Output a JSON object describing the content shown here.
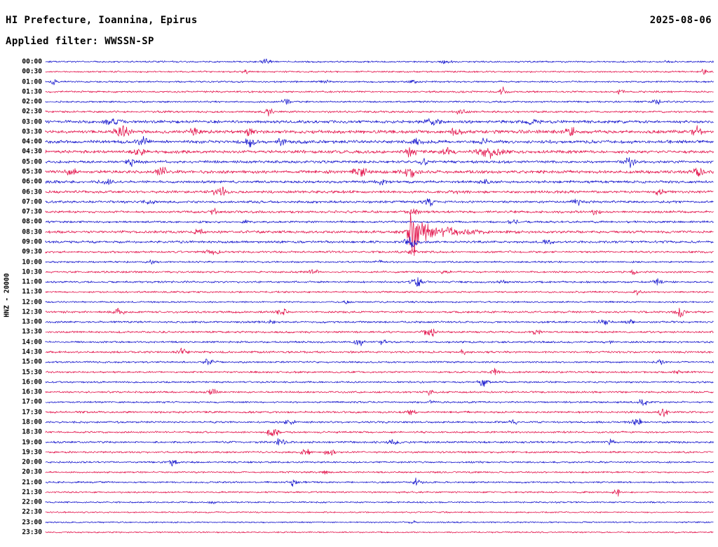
{
  "header": {
    "station_title": "HI Prefecture, Ioannina, Epirus",
    "date": "2025-08-06",
    "filter_line": "Applied filter: WWSSN-SP"
  },
  "side_label": "HNZ - 20000",
  "chart_data": {
    "type": "line",
    "subtype": "helicorder-seismogram",
    "title": "HI Prefecture, Ioannina, Epirus",
    "subtitle": "Applied filter: WWSSN-SP",
    "date": "2025-08-06",
    "ylabel": "HNZ - 20000",
    "minutes_per_row": 30,
    "rows_total": 48,
    "grid": false,
    "legend": "none",
    "trace_palette": {
      "blue": "#1111cc",
      "red": "#e2114a"
    },
    "notable_events": [
      {
        "row": "08:30",
        "position_fraction": 0.548,
        "note": "largest amplitude burst of the day"
      },
      {
        "row": "03:30",
        "position_fraction": 0.115,
        "note": "strong noise bursts, morning noisy period 03:00-07:30"
      }
    ],
    "rows": [
      {
        "t": "00:00",
        "c": "blue",
        "amp": 1.4,
        "ev": [
          [
            0.33,
            3.5,
            0.006
          ],
          [
            0.6,
            3,
            0.005
          ],
          [
            0.93,
            2.5,
            0.004
          ]
        ]
      },
      {
        "t": "00:30",
        "c": "red",
        "amp": 1.4,
        "ev": [
          [
            0.3,
            2.5,
            0.005
          ],
          [
            0.985,
            7,
            0.0025
          ]
        ]
      },
      {
        "t": "01:00",
        "c": "blue",
        "amp": 1.4,
        "ev": [
          [
            0.012,
            6,
            0.0025
          ],
          [
            0.42,
            2.5,
            0.005
          ],
          [
            0.55,
            2.5,
            0.004
          ]
        ]
      },
      {
        "t": "01:30",
        "c": "red",
        "amp": 1.5,
        "ev": [
          [
            0.685,
            7,
            0.004
          ],
          [
            0.86,
            3,
            0.004
          ]
        ]
      },
      {
        "t": "02:00",
        "c": "blue",
        "amp": 1.5,
        "ev": [
          [
            0.36,
            5.5,
            0.004
          ],
          [
            0.915,
            6.5,
            0.0035
          ]
        ]
      },
      {
        "t": "02:30",
        "c": "red",
        "amp": 1.7,
        "ev": [
          [
            0.335,
            6,
            0.004
          ],
          [
            0.62,
            3.5,
            0.006
          ]
        ]
      },
      {
        "t": "03:00",
        "c": "blue",
        "amp": 2.4,
        "ev": [
          [
            0.1,
            4,
            0.008
          ],
          [
            0.58,
            5,
            0.008
          ],
          [
            0.73,
            4,
            0.006
          ]
        ]
      },
      {
        "t": "03:30",
        "c": "red",
        "amp": 2.8,
        "ev": [
          [
            0.115,
            9,
            0.007
          ],
          [
            0.225,
            6,
            0.006
          ],
          [
            0.305,
            5,
            0.005
          ],
          [
            0.615,
            6,
            0.006
          ],
          [
            0.785,
            8,
            0.006
          ],
          [
            0.975,
            7,
            0.005
          ]
        ]
      },
      {
        "t": "04:00",
        "c": "blue",
        "amp": 2.6,
        "ev": [
          [
            0.145,
            6,
            0.006
          ],
          [
            0.305,
            8,
            0.005
          ],
          [
            0.355,
            5,
            0.005
          ],
          [
            0.555,
            5,
            0.006
          ],
          [
            0.655,
            4,
            0.005
          ]
        ]
      },
      {
        "t": "04:30",
        "c": "red",
        "amp": 2.6,
        "ev": [
          [
            0.14,
            4,
            0.006
          ],
          [
            0.545,
            9,
            0.007
          ],
          [
            0.6,
            5,
            0.006
          ],
          [
            0.665,
            9,
            0.012
          ]
        ]
      },
      {
        "t": "05:00",
        "c": "blue",
        "amp": 2.2,
        "ev": [
          [
            0.13,
            5,
            0.006
          ],
          [
            0.565,
            4,
            0.005
          ],
          [
            0.875,
            7,
            0.005
          ]
        ]
      },
      {
        "t": "05:30",
        "c": "red",
        "amp": 2.6,
        "ev": [
          [
            0.04,
            7,
            0.006
          ],
          [
            0.175,
            6,
            0.006
          ],
          [
            0.47,
            7,
            0.007
          ],
          [
            0.545,
            8,
            0.006
          ],
          [
            0.975,
            8,
            0.005
          ]
        ]
      },
      {
        "t": "06:00",
        "c": "blue",
        "amp": 2.2,
        "ev": [
          [
            0.09,
            5,
            0.006
          ],
          [
            0.5,
            5,
            0.006
          ],
          [
            0.655,
            4,
            0.005
          ]
        ]
      },
      {
        "t": "06:30",
        "c": "red",
        "amp": 2.2,
        "ev": [
          [
            0.26,
            8,
            0.007
          ],
          [
            0.615,
            4,
            0.005
          ],
          [
            0.92,
            6.5,
            0.005
          ]
        ]
      },
      {
        "t": "07:00",
        "c": "blue",
        "amp": 2.0,
        "ev": [
          [
            0.155,
            4,
            0.005
          ],
          [
            0.575,
            6,
            0.005
          ],
          [
            0.795,
            5,
            0.005
          ]
        ]
      },
      {
        "t": "07:30",
        "c": "red",
        "amp": 2.0,
        "ev": [
          [
            0.25,
            5,
            0.005
          ],
          [
            0.55,
            4,
            0.005
          ],
          [
            0.825,
            4,
            0.005
          ]
        ]
      },
      {
        "t": "08:00",
        "c": "blue",
        "amp": 1.8,
        "ev": [
          [
            0.3,
            3,
            0.005
          ],
          [
            0.7,
            3,
            0.005
          ]
        ]
      },
      {
        "t": "08:30",
        "c": "red",
        "amp": 2.2,
        "ev": [
          [
            0.23,
            4,
            0.005
          ],
          [
            0.548,
            40,
            0.0035
          ],
          [
            0.56,
            14,
            0.01
          ],
          [
            0.6,
            6,
            0.03
          ]
        ]
      },
      {
        "t": "09:00",
        "c": "blue",
        "amp": 2.0,
        "ev": [
          [
            0.548,
            8,
            0.007
          ],
          [
            0.75,
            3,
            0.005
          ]
        ]
      },
      {
        "t": "09:30",
        "c": "red",
        "amp": 1.8,
        "ev": [
          [
            0.25,
            4,
            0.006
          ],
          [
            0.548,
            3,
            0.005
          ]
        ]
      },
      {
        "t": "10:00",
        "c": "blue",
        "amp": 1.5,
        "ev": [
          [
            0.16,
            4,
            0.004
          ],
          [
            0.5,
            2.5,
            0.004
          ]
        ]
      },
      {
        "t": "10:30",
        "c": "red",
        "amp": 1.6,
        "ev": [
          [
            0.4,
            4,
            0.005
          ],
          [
            0.6,
            3.5,
            0.005
          ],
          [
            0.88,
            3,
            0.004
          ]
        ]
      },
      {
        "t": "11:00",
        "c": "blue",
        "amp": 1.6,
        "ev": [
          [
            0.555,
            8,
            0.005
          ],
          [
            0.685,
            4,
            0.004
          ],
          [
            0.915,
            5,
            0.004
          ]
        ]
      },
      {
        "t": "11:30",
        "c": "red",
        "amp": 1.5,
        "ev": [
          [
            0.885,
            4,
            0.004
          ]
        ]
      },
      {
        "t": "12:00",
        "c": "blue",
        "amp": 1.4,
        "ev": [
          [
            0.45,
            2.5,
            0.004
          ]
        ]
      },
      {
        "t": "12:30",
        "c": "red",
        "amp": 1.7,
        "ev": [
          [
            0.11,
            7,
            0.005
          ],
          [
            0.355,
            5,
            0.005
          ],
          [
            0.95,
            7.5,
            0.005
          ]
        ]
      },
      {
        "t": "13:00",
        "c": "blue",
        "amp": 1.6,
        "ev": [
          [
            0.335,
            4,
            0.005
          ],
          [
            0.835,
            7,
            0.005
          ],
          [
            0.875,
            4,
            0.004
          ]
        ]
      },
      {
        "t": "13:30",
        "c": "red",
        "amp": 1.7,
        "ev": [
          [
            0.575,
            8,
            0.006
          ],
          [
            0.735,
            4,
            0.005
          ]
        ]
      },
      {
        "t": "14:00",
        "c": "blue",
        "amp": 1.6,
        "ev": [
          [
            0.47,
            5,
            0.005
          ],
          [
            0.505,
            4,
            0.004
          ],
          [
            0.845,
            3.5,
            0.004
          ]
        ]
      },
      {
        "t": "14:30",
        "c": "red",
        "amp": 1.7,
        "ev": [
          [
            0.205,
            6,
            0.005
          ],
          [
            0.625,
            4,
            0.005
          ]
        ]
      },
      {
        "t": "15:00",
        "c": "blue",
        "amp": 1.5,
        "ev": [
          [
            0.245,
            5,
            0.005
          ],
          [
            0.92,
            3.5,
            0.004
          ]
        ]
      },
      {
        "t": "15:30",
        "c": "red",
        "amp": 1.6,
        "ev": [
          [
            0.675,
            5.5,
            0.005
          ],
          [
            0.945,
            3.5,
            0.004
          ]
        ]
      },
      {
        "t": "16:00",
        "c": "blue",
        "amp": 1.5,
        "ev": [
          [
            0.655,
            6,
            0.005
          ]
        ]
      },
      {
        "t": "16:30",
        "c": "red",
        "amp": 1.6,
        "ev": [
          [
            0.25,
            6,
            0.005
          ],
          [
            0.575,
            4,
            0.005
          ]
        ]
      },
      {
        "t": "17:00",
        "c": "blue",
        "amp": 1.5,
        "ev": [
          [
            0.575,
            3.5,
            0.004
          ],
          [
            0.895,
            6.5,
            0.005
          ]
        ]
      },
      {
        "t": "17:30",
        "c": "red",
        "amp": 1.7,
        "ev": [
          [
            0.545,
            6,
            0.005
          ],
          [
            0.925,
            6,
            0.005
          ]
        ]
      },
      {
        "t": "18:00",
        "c": "blue",
        "amp": 1.6,
        "ev": [
          [
            0.365,
            5,
            0.005
          ],
          [
            0.7,
            3.5,
            0.004
          ],
          [
            0.885,
            6,
            0.005
          ]
        ]
      },
      {
        "t": "18:30",
        "c": "red",
        "amp": 1.6,
        "ev": [
          [
            0.34,
            8,
            0.006
          ]
        ]
      },
      {
        "t": "19:00",
        "c": "blue",
        "amp": 1.7,
        "ev": [
          [
            0.35,
            5,
            0.005
          ],
          [
            0.52,
            5.5,
            0.005
          ],
          [
            0.845,
            4,
            0.004
          ]
        ]
      },
      {
        "t": "19:30",
        "c": "red",
        "amp": 1.6,
        "ev": [
          [
            0.39,
            7,
            0.005
          ],
          [
            0.425,
            6,
            0.005
          ]
        ]
      },
      {
        "t": "20:00",
        "c": "blue",
        "amp": 1.5,
        "ev": [
          [
            0.19,
            6,
            0.005
          ]
        ]
      },
      {
        "t": "20:30",
        "c": "red",
        "amp": 1.4,
        "ev": [
          [
            0.42,
            2.5,
            0.004
          ]
        ]
      },
      {
        "t": "21:00",
        "c": "blue",
        "amp": 1.5,
        "ev": [
          [
            0.37,
            5,
            0.005
          ],
          [
            0.555,
            5.5,
            0.005
          ]
        ]
      },
      {
        "t": "21:30",
        "c": "red",
        "amp": 1.4,
        "ev": [
          [
            0.855,
            5.5,
            0.004
          ]
        ]
      },
      {
        "t": "22:00",
        "c": "blue",
        "amp": 1.3,
        "ev": [
          [
            0.25,
            2.2,
            0.004
          ]
        ]
      },
      {
        "t": "22:30",
        "c": "red",
        "amp": 1.2,
        "ev": []
      },
      {
        "t": "23:00",
        "c": "blue",
        "amp": 1.2,
        "ev": [
          [
            0.55,
            2,
            0.004
          ]
        ]
      },
      {
        "t": "23:30",
        "c": "red",
        "amp": 1.2,
        "ev": []
      }
    ]
  }
}
